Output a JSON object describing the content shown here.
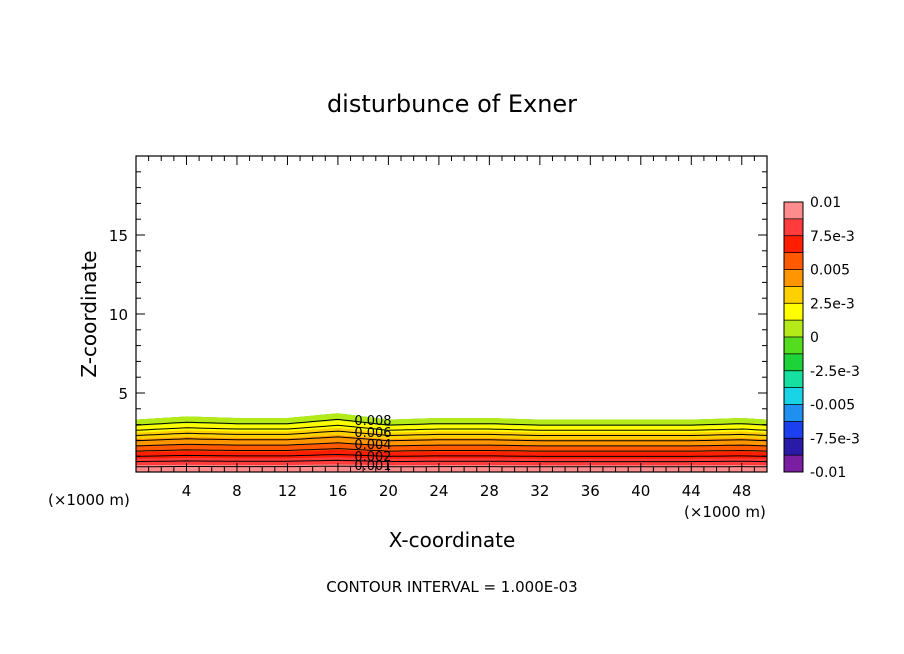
{
  "chart_data": {
    "type": "contour",
    "title": "disturbunce of Exner",
    "xlabel": "X-coordinate",
    "ylabel": "Z-coordinate",
    "x_unit_left": "(×1000 m)",
    "x_unit_right": "(×1000 m)",
    "xlim": [
      0,
      50
    ],
    "ylim": [
      0,
      20
    ],
    "x_ticks": [
      4,
      8,
      12,
      16,
      20,
      24,
      28,
      32,
      36,
      40,
      44,
      48
    ],
    "y_ticks": [
      5,
      10,
      15
    ],
    "footer": "CONTOUR INTERVAL = 1.000E-03",
    "contour_interval": 0.001,
    "contour_levels": [
      0.001,
      0.002,
      0.003,
      0.004,
      0.005,
      0.006,
      0.007,
      0.008,
      0.009
    ],
    "contour_labels": [
      "0.001",
      "0.002",
      "0.004",
      "0.006",
      "0.008"
    ],
    "colorbar": {
      "min": -0.01,
      "max": 0.01,
      "tick_labels": [
        "0.01",
        "7.5e-3",
        "0.005",
        "2.5e-3",
        "0",
        "-2.5e-3",
        "-0.005",
        "-7.5e-3",
        "-0.01"
      ],
      "colors": [
        "#7a1fa2",
        "#2a1aa8",
        "#1c3ff0",
        "#1f8ff0",
        "#19d4e6",
        "#16e0a0",
        "#1dd33a",
        "#54dd1e",
        "#b5ea19",
        "#ffff00",
        "#ffd000",
        "#ff9600",
        "#ff5a00",
        "#ff1e00",
        "#ff3b3b",
        "#ff8c8c"
      ]
    },
    "field_top_height": [
      [
        0,
        3.3
      ],
      [
        4,
        3.5
      ],
      [
        8,
        3.4
      ],
      [
        12,
        3.4
      ],
      [
        16,
        3.7
      ],
      [
        18,
        3.5
      ],
      [
        20,
        3.3
      ],
      [
        24,
        3.4
      ],
      [
        28,
        3.4
      ],
      [
        32,
        3.3
      ],
      [
        36,
        3.3
      ],
      [
        40,
        3.3
      ],
      [
        44,
        3.3
      ],
      [
        48,
        3.4
      ],
      [
        50,
        3.3
      ]
    ]
  }
}
